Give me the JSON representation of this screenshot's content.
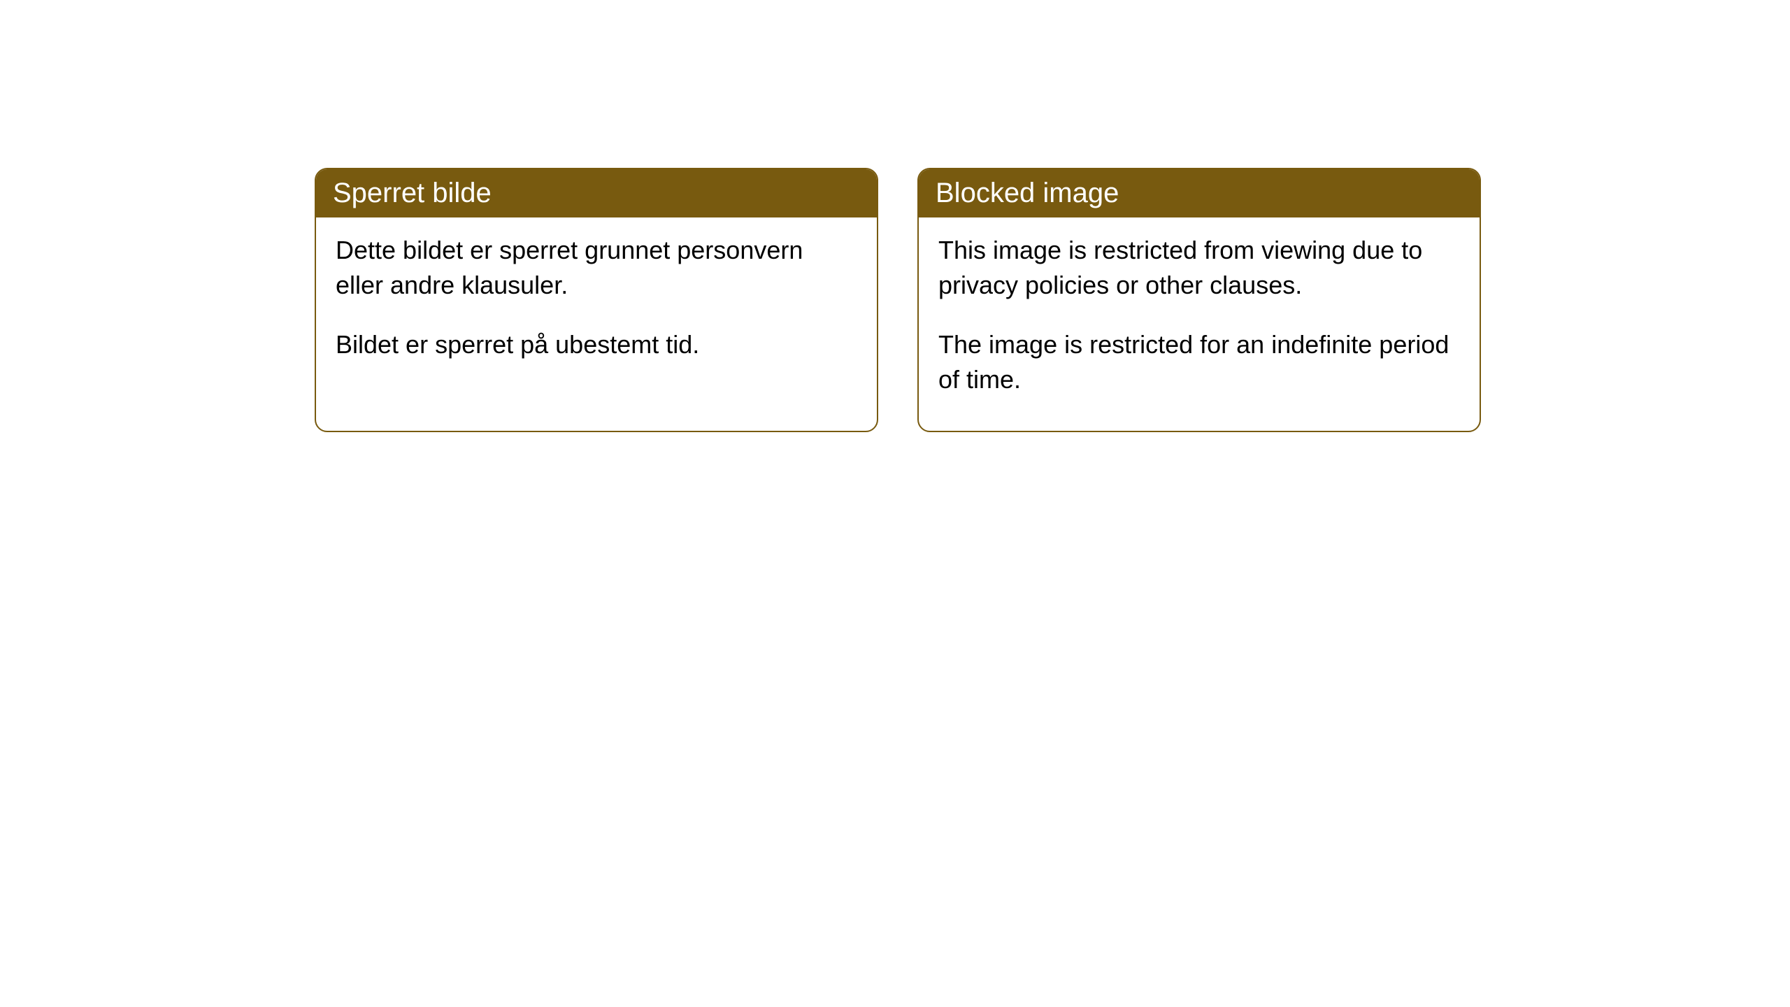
{
  "cards": [
    {
      "title": "Sperret bilde",
      "paragraph1": "Dette bildet er sperret grunnet personvern eller andre klausuler.",
      "paragraph2": "Bildet er sperret på ubestemt tid."
    },
    {
      "title": "Blocked image",
      "paragraph1": "This image is restricted from viewing due to privacy policies or other clauses.",
      "paragraph2": "The image is restricted for an indefinite period of time."
    }
  ],
  "styling": {
    "header_background": "#785a0f",
    "header_text_color": "#ffffff",
    "border_color": "#785a0f",
    "card_background": "#ffffff",
    "body_text_color": "#000000",
    "border_radius": 18,
    "title_fontsize": 40,
    "body_fontsize": 36
  }
}
